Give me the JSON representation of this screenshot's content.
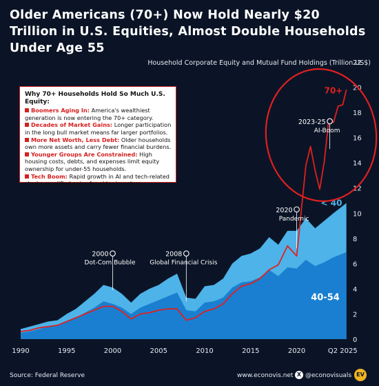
{
  "headline": "Older Americans (70+) Now Hold Nearly $20 Trillion in U.S. Equities, Almost Double Households Under Age 55",
  "callout": {
    "title": "Why 70+ Households Hold So Much U.S. Equity:",
    "items": [
      {
        "label": "Boomers Aging In:",
        "text": "America's wealthiest generation is now entering the 70+ category."
      },
      {
        "label": "Decades of Market Gains:",
        "text": "Longer participation in the long bull market means far larger portfolios."
      },
      {
        "label": "More Net Worth, Less Debt:",
        "text": "Older households own more assets and carry fewer financial burdens."
      },
      {
        "label": "Younger Groups Are Constrained:",
        "text": "High housing costs, debts, and expenses limit equity ownership for under-55 households."
      },
      {
        "label": "Tech Boom:",
        "text": "Rapid growth in AI and tech-related stocks amplified gains for older investors."
      }
    ]
  },
  "footer": {
    "source": "Source: Federal Reserve",
    "site": "www.econovis.net",
    "handle": "@econovisuals",
    "logo_text": "EV",
    "x_icon": "x-logo-icon"
  },
  "chart_data": {
    "type": "area",
    "title": "",
    "ylabel": "Household Corporate Equity and Mutual Fund Holdings (Trillion US$)",
    "xlabel": "",
    "ylim": [
      0,
      22
    ],
    "xlim": [
      1990,
      2025.5
    ],
    "y_ticks": [
      0,
      2,
      4,
      6,
      8,
      10,
      12,
      14,
      16,
      18,
      20,
      22
    ],
    "x_ticks": [
      1990,
      1995,
      2000,
      2005,
      2010,
      2015,
      2020,
      2025
    ],
    "x_tick_labels": [
      "1990",
      "1995",
      "2000",
      "2005",
      "2010",
      "2015",
      "2020",
      "Q2 2025"
    ],
    "grid": false,
    "series": [
      {
        "name": "< 40",
        "color": "#4db3e8",
        "x": [
          1990,
          1991,
          1992,
          1993,
          1994,
          1995,
          1996,
          1997,
          1998,
          1999,
          2000,
          2001,
          2002,
          2003,
          2004,
          2005,
          2006,
          2007,
          2008,
          2009,
          2010,
          2011,
          2012,
          2013,
          2014,
          2015,
          2016,
          2017,
          2018,
          2019,
          2020,
          2021,
          2022,
          2023,
          2024,
          2025.4
        ],
        "values": [
          0.8,
          1.0,
          1.2,
          1.4,
          1.5,
          2.0,
          2.4,
          3.0,
          3.6,
          4.3,
          4.1,
          3.6,
          2.9,
          3.6,
          4.0,
          4.3,
          4.8,
          5.2,
          3.3,
          3.2,
          4.2,
          4.3,
          4.8,
          6.0,
          6.6,
          6.8,
          7.2,
          8.1,
          7.5,
          8.6,
          8.6,
          9.6,
          8.8,
          9.4,
          10.0,
          10.8
        ]
      },
      {
        "name": "40-54",
        "color": "#1a7fd0",
        "x": [
          1990,
          1991,
          1992,
          1993,
          1994,
          1995,
          1996,
          1997,
          1998,
          1999,
          2000,
          2001,
          2002,
          2003,
          2004,
          2005,
          2006,
          2007,
          2008,
          2009,
          2010,
          2011,
          2012,
          2013,
          2014,
          2015,
          2016,
          2017,
          2018,
          2019,
          2020,
          2021,
          2022,
          2023,
          2024,
          2025.4
        ],
        "values": [
          0.5,
          0.6,
          0.8,
          1.0,
          1.1,
          1.4,
          1.7,
          2.1,
          2.5,
          3.0,
          2.8,
          2.5,
          2.0,
          2.5,
          2.8,
          3.1,
          3.4,
          3.7,
          2.3,
          2.2,
          2.9,
          3.0,
          3.3,
          4.1,
          4.5,
          4.6,
          4.9,
          5.5,
          5.0,
          5.7,
          5.6,
          6.3,
          5.8,
          6.1,
          6.5,
          6.9
        ]
      },
      {
        "name": "70+",
        "color": "#e02020",
        "x": [
          1990,
          1991,
          1992,
          1993,
          1994,
          1995,
          1996,
          1997,
          1998,
          1999,
          2000,
          2001,
          2002,
          2003,
          2004,
          2005,
          2006,
          2007,
          2008,
          2009,
          2010,
          2011,
          2012,
          2013,
          2014,
          2015,
          2016,
          2017,
          2018,
          2019,
          2020,
          2020.5,
          2021,
          2021.5,
          2022,
          2022.5,
          2023,
          2023.5,
          2024,
          2024.5,
          2025,
          2025.4
        ],
        "values": [
          0.6,
          0.7,
          0.9,
          1.0,
          1.1,
          1.4,
          1.7,
          2.0,
          2.3,
          2.6,
          2.6,
          2.2,
          1.6,
          2.0,
          2.1,
          2.3,
          2.4,
          2.4,
          1.5,
          1.7,
          2.2,
          2.4,
          2.8,
          3.6,
          4.2,
          4.4,
          4.8,
          5.5,
          5.9,
          7.4,
          6.6,
          10.2,
          13.8,
          15.3,
          13.4,
          11.9,
          14.1,
          17.5,
          17.2,
          18.5,
          18.6,
          19.8
        ]
      }
    ],
    "annotations": [
      {
        "year": "2000",
        "label": "Dot-Com Bubble"
      },
      {
        "year": "2008",
        "label": "Global Financial Crisis"
      },
      {
        "year": "2020",
        "label": "Pandemic"
      },
      {
        "year": "2023-25",
        "label": "AI-Boom"
      }
    ],
    "series_labels": [
      "70+",
      "< 40",
      "40-54"
    ]
  }
}
